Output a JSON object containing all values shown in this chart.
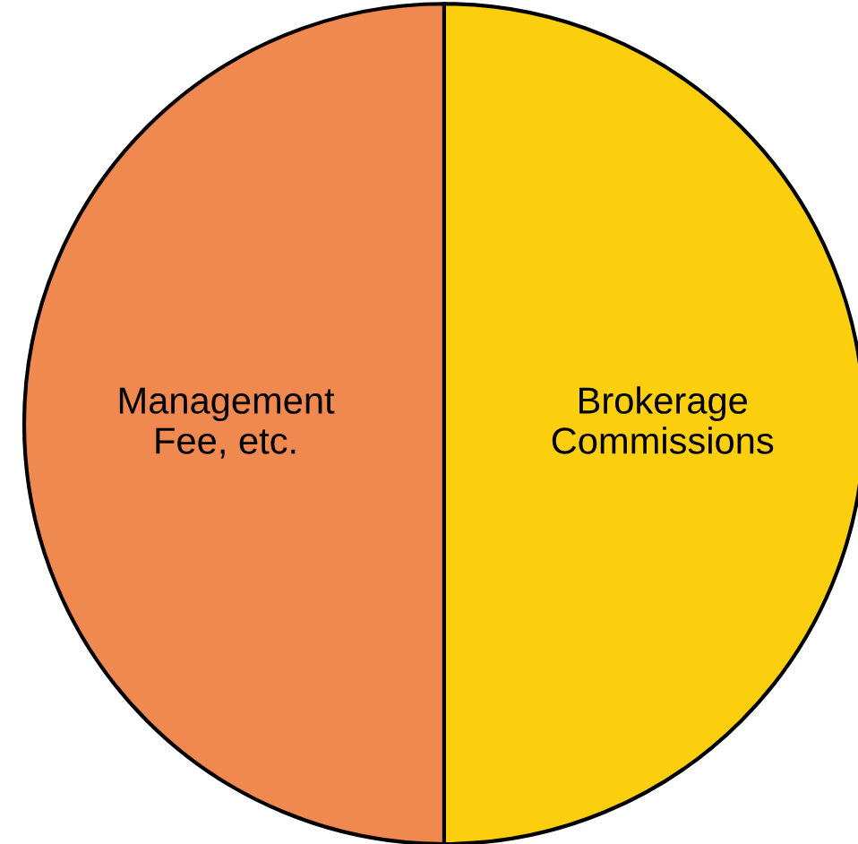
{
  "chart_data": {
    "type": "pie",
    "categories": [
      "Brokerage\nCommissions",
      "Management\nFee, etc."
    ],
    "values": [
      50,
      50
    ],
    "colors": [
      "#fccf0e",
      "#f0894f"
    ]
  }
}
